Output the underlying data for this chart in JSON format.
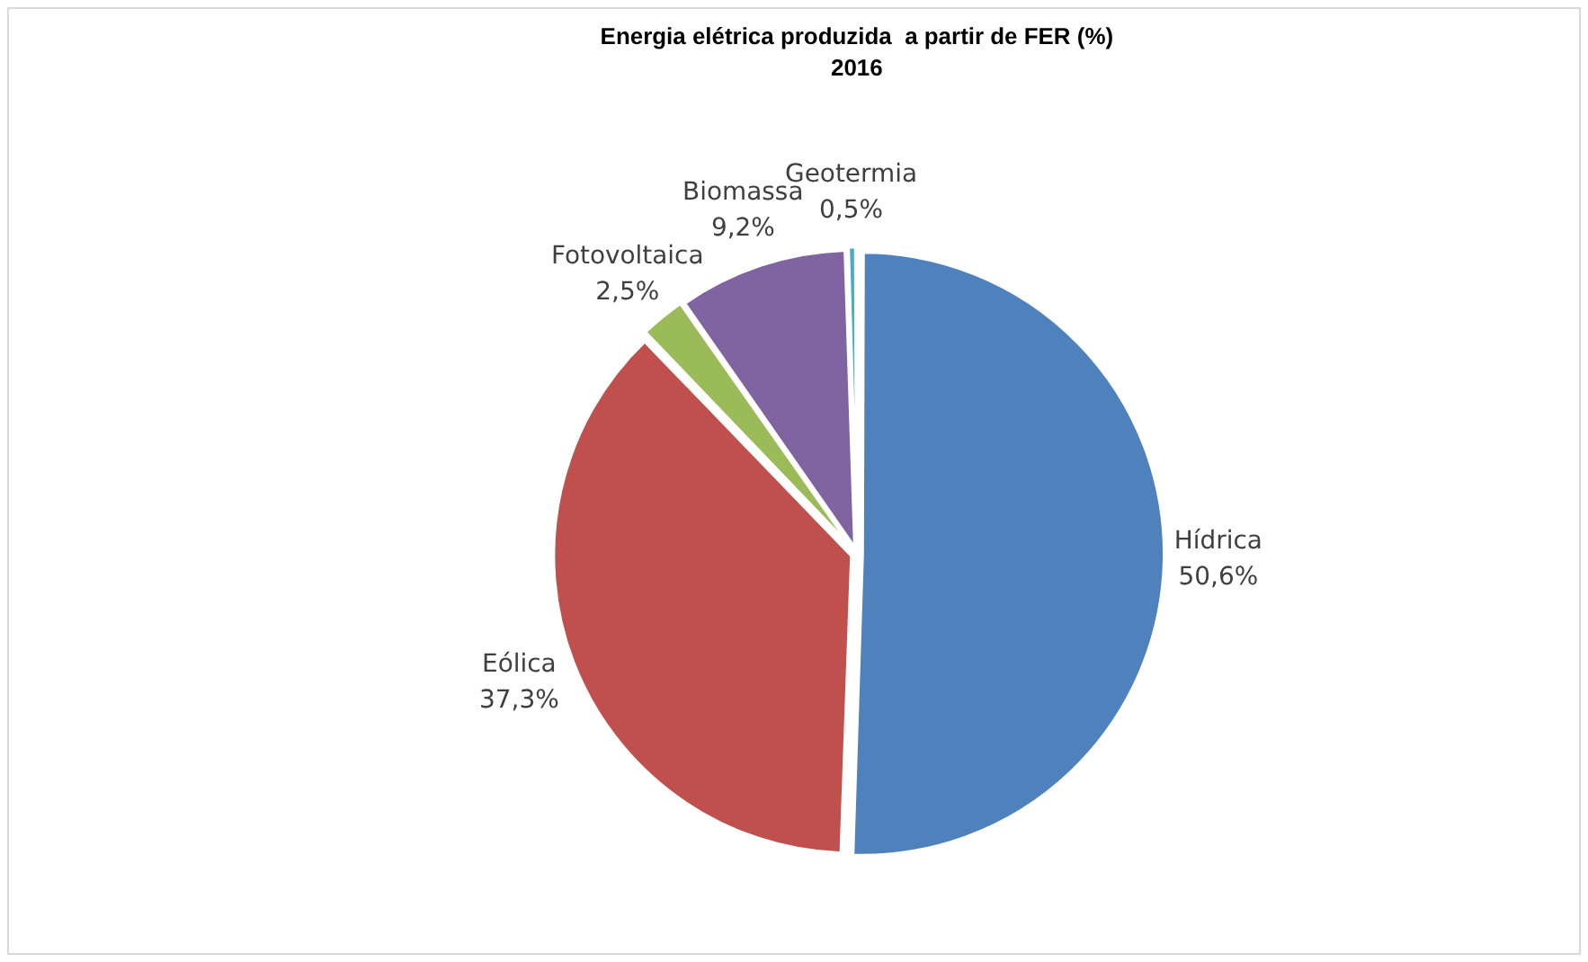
{
  "chart_data": {
    "type": "pie",
    "title": "Energia elétrica produzida  a partir de FER (%)",
    "subtitle": "2016",
    "categories": [
      "Hídrica",
      "Eólica",
      "Fotovoltaica",
      "Biomassa",
      "Geotermia"
    ],
    "values": [
      50.6,
      37.3,
      2.5,
      9.2,
      0.5
    ],
    "value_labels": [
      "50,6%",
      "37,3%",
      "2,5%",
      "9,2%",
      "0,5%"
    ],
    "colors": [
      "#4f81bd",
      "#c0504d",
      "#9bbb59",
      "#8064a2",
      "#4bacc6"
    ],
    "legend": false
  }
}
